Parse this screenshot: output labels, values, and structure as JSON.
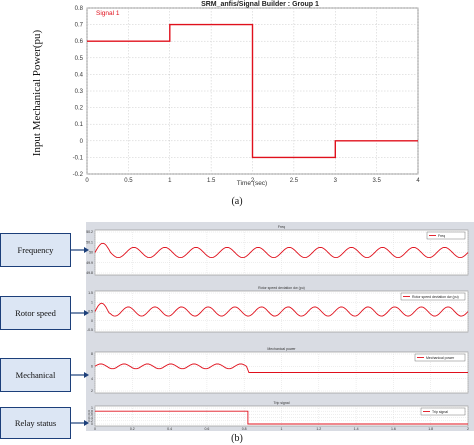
{
  "top_chart": {
    "title": "SRM_anfis/Signal Builder : Group 1",
    "legend_label": "Signal 1",
    "ylabel": "Input Mechanical Power(pu)",
    "xlabel": "Time (sec)",
    "xticks": [
      "0",
      "0.5",
      "1",
      "1.5",
      "2",
      "2.5",
      "3",
      "3.5",
      "4"
    ],
    "yticks": [
      "0.8",
      "0.7",
      "0.6",
      "0.5",
      "0.4",
      "0.3",
      "0.2",
      "0.1",
      "0",
      "-0.1",
      "-0.2"
    ],
    "caption": "(a)"
  },
  "labels": {
    "frequency": "Frequency",
    "rotor_speed": "Rotor speed",
    "mechanical": "Mechanical",
    "relay_status": "Relay status"
  },
  "bottom": {
    "caption": "(b)",
    "panels": [
      {
        "title": "Freq",
        "legend": "Freq",
        "yticks": [
          "50.2",
          "50.1",
          "50",
          "49.9",
          "49.8"
        ]
      },
      {
        "title": "Rotor speed deviation dw (pu)",
        "legend": "Rotor speed deviation dw (pu)",
        "yticks": [
          "1.5",
          "1",
          "0.5",
          "0",
          "-0.5"
        ]
      },
      {
        "title": "Mechanical power",
        "legend": "Mechanical power",
        "yticks": [
          "8",
          "6",
          "4",
          "2"
        ]
      },
      {
        "title": "Trip signal",
        "legend": "Trip signal",
        "yticks": [
          "1",
          "0.8",
          "0.6",
          "0.4",
          "0.2",
          "0"
        ]
      }
    ],
    "xticks": [
      "0",
      "0.2",
      "0.4",
      "0.6",
      "0.8",
      "1",
      "1.2",
      "1.4",
      "1.6",
      "1.8",
      "2"
    ]
  },
  "chart_data": [
    {
      "type": "line",
      "title": "SRM_anfis/Signal Builder : Group 1",
      "xlabel": "Time (sec)",
      "ylabel": "Input Mechanical Power(pu)",
      "xlim": [
        0,
        4
      ],
      "ylim": [
        -0.2,
        0.8
      ],
      "series": [
        {
          "name": "Signal 1",
          "x": [
            0,
            1,
            1,
            2,
            2,
            3,
            3,
            4
          ],
          "y": [
            0.6,
            0.6,
            0.7,
            0.7,
            -0.1,
            -0.1,
            0,
            0
          ],
          "color": "#e0101c"
        }
      ]
    },
    {
      "type": "line",
      "title": "Freq",
      "xlim": [
        0,
        2
      ],
      "ylim": [
        49.8,
        50.2
      ],
      "series": [
        {
          "name": "Freq",
          "color": "#e0101c",
          "mean": 50.0,
          "amplitude": 0.05,
          "cycles": 12
        }
      ]
    },
    {
      "type": "line",
      "title": "Rotor speed deviation dw (pu)",
      "xlim": [
        0,
        2
      ],
      "ylim": [
        -0.5,
        1.5
      ],
      "series": [
        {
          "name": "Rotor speed deviation dw (pu)",
          "color": "#e0101c",
          "mean": 0.5,
          "amplitude": 0.25,
          "cycles": 14
        }
      ]
    },
    {
      "type": "line",
      "title": "Mechanical power",
      "xlim": [
        0,
        2
      ],
      "ylim": [
        2,
        8
      ],
      "series": [
        {
          "name": "Mechanical power",
          "color": "#e0101c",
          "mean_before": 6,
          "amplitude_before": 0.4,
          "step_time": 0.82,
          "level_after": 5
        }
      ]
    },
    {
      "type": "line",
      "title": "Trip signal",
      "xlim": [
        0,
        2
      ],
      "ylim": [
        0,
        1
      ],
      "series": [
        {
          "name": "Trip signal",
          "color": "#e0101c",
          "x": [
            0,
            0.82,
            0.82,
            2
          ],
          "y": [
            0.8,
            0.8,
            0,
            0
          ]
        }
      ]
    }
  ]
}
